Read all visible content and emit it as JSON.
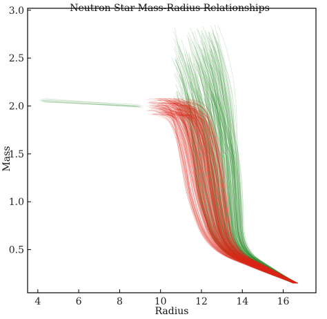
{
  "chart_data": {
    "type": "line",
    "title": "Neutron Star Mass-Radius Relationships",
    "xlabel": "Radius",
    "ylabel": "Mass",
    "xlim": [
      3.5,
      17.6
    ],
    "ylim": [
      0.05,
      3.02
    ],
    "xticks": [
      4,
      6,
      8,
      10,
      12,
      14,
      16
    ],
    "yticks": [
      0.5,
      1.0,
      1.5,
      2.0,
      2.5,
      3.0
    ],
    "grid": false,
    "legend": "none",
    "colors": {
      "green": "#2e8b2e",
      "red": "#dd2a1c",
      "frame": "#000000"
    },
    "series": [
      {
        "color": "green",
        "groups": [
          {
            "count": 240,
            "r_start": [
              10.0,
              14.0
            ],
            "m_max": [
              1.95,
              2.85
            ],
            "curve": [
              [
                0.0,
                16.6,
                0.15
              ],
              [
                0.35,
                15.0,
                0.3
              ],
              [
                0.6,
                13.2,
                0.5
              ],
              [
                1.0,
                12.6,
                1.0
              ],
              [
                1.5,
                12.4,
                1.5
              ],
              [
                1.9,
                12.2,
                1.9
              ],
              [
                1.0,
                11.8,
                2.3
              ],
              [
                1.0,
                11.4,
                2.55
              ]
            ]
          }
        ]
      },
      {
        "color": "red",
        "groups": [
          {
            "count": 240,
            "r_start": [
              9.6,
              13.2
            ],
            "m_max": [
              1.9,
              2.08
            ],
            "curve": [
              [
                0.0,
                16.6,
                0.15
              ],
              [
                0.35,
                14.6,
                0.3
              ],
              [
                0.6,
                12.2,
                0.5
              ],
              [
                1.0,
                11.1,
                1.0
              ],
              [
                1.5,
                10.7,
                1.5
              ],
              [
                1.9,
                10.2,
                1.9
              ],
              [
                1.0,
                9.5,
                2.0
              ],
              [
                1.0,
                9.1,
                1.98
              ]
            ]
          }
        ]
      },
      {
        "color": "green",
        "groups": [
          {
            "count": 12,
            "r_start": [
              4.2,
              9.0
            ],
            "m_max": [
              2.0,
              2.07
            ],
            "curve": [
              [
                0.0,
                4.2,
                2.06
              ],
              [
                1.0,
                9.0,
                2.0
              ]
            ]
          }
        ]
      }
    ]
  }
}
